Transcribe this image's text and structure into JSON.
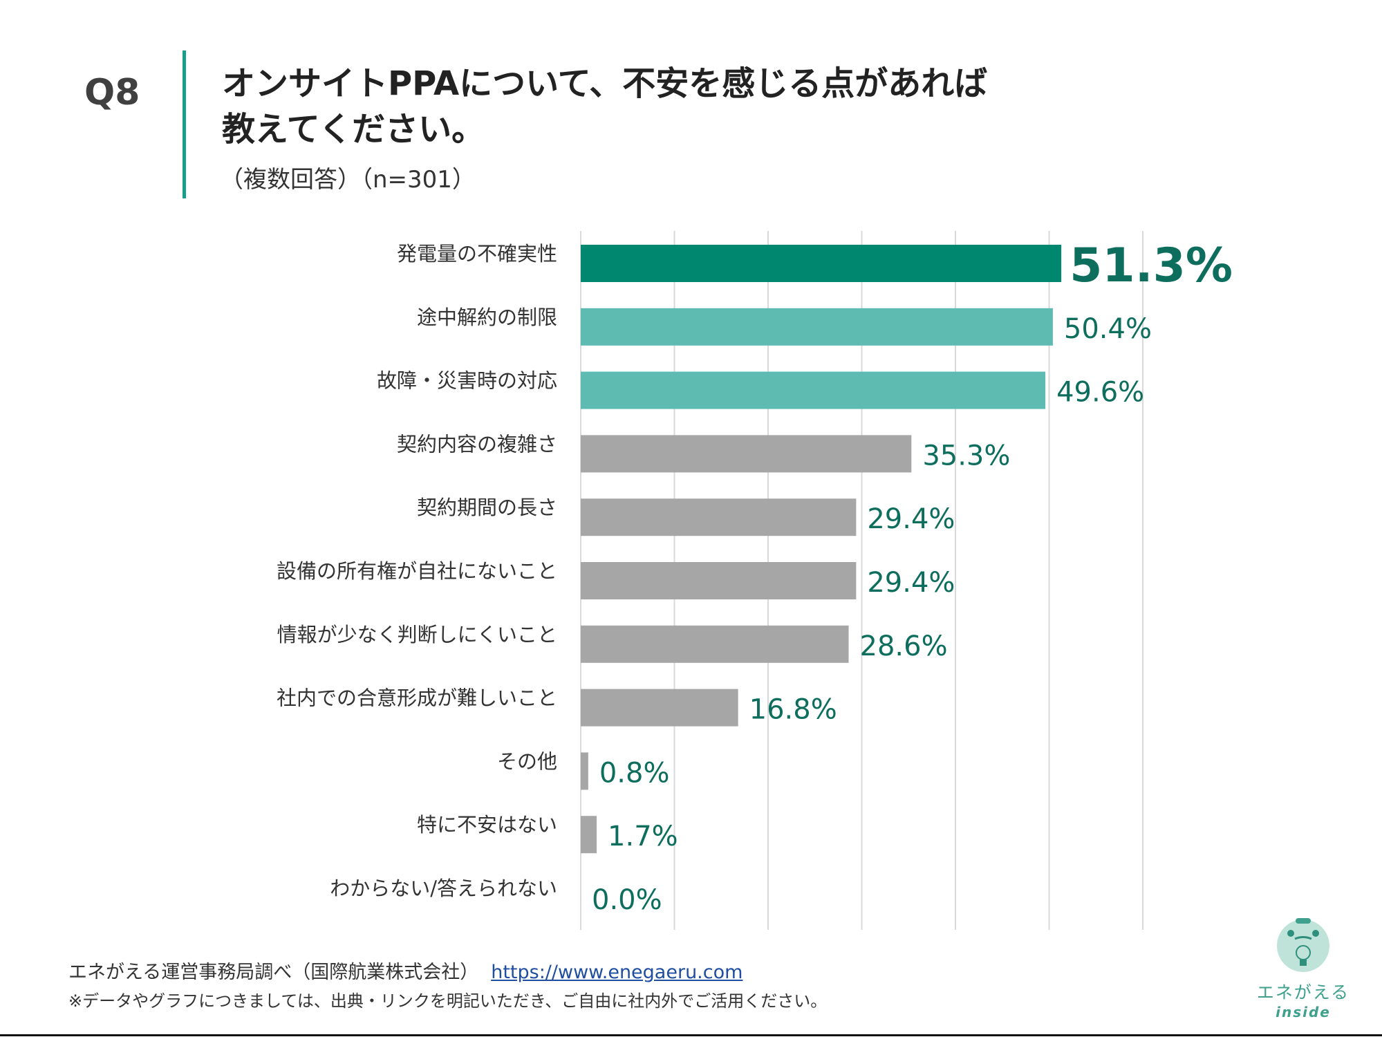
{
  "header": {
    "question_number": "Q8",
    "title_line1": "オンサイトPPAについて、不安を感じる点があれば",
    "title_line2": "教えてください。",
    "subtitle": "（複数回答）（n=301）"
  },
  "chart_data": {
    "type": "bar",
    "orientation": "horizontal",
    "categories": [
      "発電量の不確実性",
      "途中解約の制限",
      "故障・災害時の対応",
      "契約内容の複雑さ",
      "契約期間の長さ",
      "設備の所有権が自社にないこと",
      "情報が少なく判断しにくいこと",
      "社内での合意形成が難しいこと",
      "その他",
      "特に不安はない",
      "わからない/答えられない"
    ],
    "values": [
      51.3,
      50.4,
      49.6,
      35.3,
      29.4,
      29.4,
      28.6,
      16.8,
      0.8,
      1.7,
      0.0
    ],
    "data_labels": [
      "51.3%",
      "50.4%",
      "49.6%",
      "35.3%",
      "29.4%",
      "29.4%",
      "28.6%",
      "16.8%",
      "0.8%",
      "1.7%",
      "0.0%"
    ],
    "xlim": [
      0,
      60
    ],
    "grid": true,
    "grid_step": 10,
    "bar_colors": [
      "#00876F",
      "#5DBBB1",
      "#5DBBB1",
      "#A6A6A6",
      "#A6A6A6",
      "#A6A6A6",
      "#A6A6A6",
      "#A6A6A6",
      "#A6A6A6",
      "#A6A6A6",
      "#A6A6A6"
    ],
    "label_color": "#0E6E5E",
    "highlight_index": 0
  },
  "footer": {
    "source": "エネがえる運営事務局調べ（国際航業株式会社）",
    "link": "https://www.enegaeru.com",
    "note": "※データやグラフにつきましては、出典・リンクを明記いただき、ご自由に社内外でご活用ください。"
  },
  "logo": {
    "text": "エネがえる",
    "sub": "inside"
  },
  "colors": {
    "accent": "#14A08A"
  }
}
